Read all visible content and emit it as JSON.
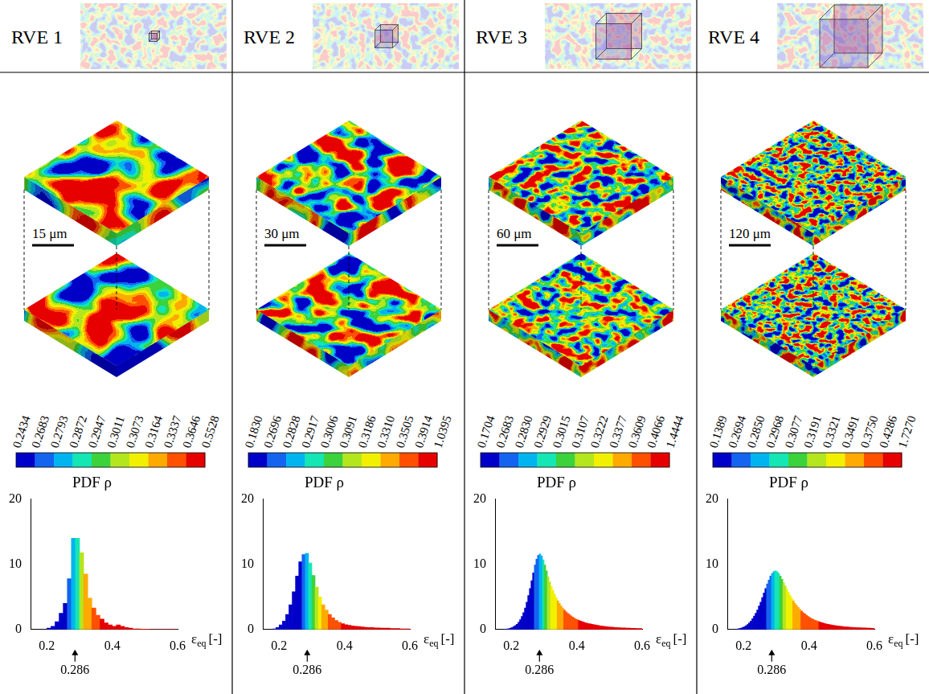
{
  "chart_data": [
    {
      "type": "histogram",
      "panel_title": "RVE 1",
      "scale_bar": "15 μm",
      "colorbar": {
        "ticks": [
          0.2434,
          0.2683,
          0.2793,
          0.2872,
          0.2947,
          0.3011,
          0.3073,
          0.3164,
          0.3337,
          0.3646,
          0.5528
        ],
        "colors": [
          "#0000c8",
          "#1464f0",
          "#00b4f0",
          "#14e6b4",
          "#3cd23c",
          "#b4e61e",
          "#f0f000",
          "#ffaa00",
          "#ff5000",
          "#e60000"
        ]
      },
      "title": "PDF ρ",
      "x_label": {
        "symbol": "ε",
        "subscript": "eq",
        "unit": "[-]"
      },
      "bins": [
        0.2,
        0.2125,
        0.225,
        0.2375,
        0.25,
        0.2625,
        0.275,
        0.2875,
        0.3,
        0.3125,
        0.325,
        0.3375,
        0.35,
        0.3625,
        0.375,
        0.3875,
        0.4,
        0.4125,
        0.425,
        0.4375,
        0.45,
        0.4625,
        0.475,
        0.4875,
        0.5,
        0.5125,
        0.525,
        0.5375,
        0.55,
        0.5625,
        0.575,
        0.5875,
        0.6
      ],
      "values": [
        0.2,
        0.5,
        1.2,
        2.5,
        4.0,
        7.8,
        14.0,
        14.0,
        11.8,
        8.5,
        4.8,
        3.3,
        2.2,
        1.6,
        1.0,
        0.7,
        0.5,
        0.7,
        0.5,
        0.3,
        0.2,
        0.1,
        0.1,
        0.05,
        0.05,
        0,
        0,
        0,
        0,
        0,
        0,
        0
      ],
      "xlim": [
        0.15,
        0.6
      ],
      "xticks": [
        0.2,
        0.4,
        0.6
      ],
      "ylim": [
        0,
        20
      ],
      "yticks": [
        0,
        10,
        20
      ],
      "grid": false,
      "annotations": [
        {
          "x": 0.286,
          "label": "0.286"
        }
      ]
    },
    {
      "type": "histogram",
      "panel_title": "RVE 2",
      "scale_bar": "30 μm",
      "colorbar": {
        "ticks": [
          {
            "value": 0.183,
            "label": "0.1830"
          },
          0.2696,
          0.2828,
          0.2917,
          0.3006,
          0.3091,
          0.3186,
          {
            "value": 0.331,
            "label": "0.3310"
          },
          0.3505,
          0.3914,
          1.0395
        ],
        "colors": [
          "#0000c8",
          "#1464f0",
          "#00b4f0",
          "#14e6b4",
          "#3cd23c",
          "#b4e61e",
          "#f0f000",
          "#ffaa00",
          "#ff5000",
          "#e60000"
        ]
      },
      "title": "PDF ρ",
      "x_label": {
        "symbol": "ε",
        "subscript": "eq",
        "unit": "[-]"
      },
      "bins": [
        0.18,
        0.19,
        0.2,
        0.21,
        0.22,
        0.23,
        0.24,
        0.25,
        0.26,
        0.27,
        0.28,
        0.29,
        0.3,
        0.31,
        0.32,
        0.33,
        0.34,
        0.35,
        0.36,
        0.37,
        0.38,
        0.39,
        0.4,
        0.41,
        0.42,
        0.43,
        0.44,
        0.45,
        0.46,
        0.47,
        0.48,
        0.49,
        0.5,
        0.51,
        0.52,
        0.53,
        0.54,
        0.55,
        0.56,
        0.57,
        0.58,
        0.59,
        0.6
      ],
      "values": [
        0.1,
        0.3,
        0.7,
        1.3,
        2.3,
        3.8,
        5.8,
        8.2,
        10.4,
        11.5,
        11.7,
        10.2,
        8.3,
        6.5,
        5.0,
        3.8,
        3.0,
        2.3,
        1.8,
        1.4,
        1.1,
        0.9,
        0.75,
        0.65,
        0.55,
        0.5,
        0.45,
        0.4,
        0.35,
        0.3,
        0.3,
        0.25,
        0.25,
        0.2,
        0.2,
        0.2,
        0.15,
        0.15,
        0.15,
        0.1,
        0.1,
        0.1
      ],
      "xlim": [
        0.15,
        0.6
      ],
      "xticks": [
        0.2,
        0.4,
        0.6
      ],
      "ylim": [
        0,
        20
      ],
      "yticks": [
        0,
        10,
        20
      ],
      "grid": false,
      "annotations": [
        {
          "x": 0.286,
          "label": "0.286"
        }
      ]
    },
    {
      "type": "histogram",
      "panel_title": "RVE 3",
      "scale_bar": "60 μm",
      "colorbar": {
        "ticks": [
          0.1704,
          0.2683,
          {
            "value": 0.283,
            "label": "0.2830"
          },
          0.2929,
          0.3015,
          0.3107,
          0.3222,
          0.3377,
          0.3609,
          0.4066,
          1.4444
        ],
        "colors": [
          "#0000c8",
          "#1464f0",
          "#00b4f0",
          "#14e6b4",
          "#3cd23c",
          "#b4e61e",
          "#f0f000",
          "#ffaa00",
          "#ff5000",
          "#e60000"
        ]
      },
      "title": "PDF ρ",
      "x_label": {
        "symbol": "ε",
        "subscript": "eq",
        "unit": "[-]"
      },
      "bins": [
        0.18,
        0.185,
        0.19,
        0.195,
        0.2,
        0.205,
        0.21,
        0.215,
        0.22,
        0.225,
        0.23,
        0.235,
        0.24,
        0.245,
        0.25,
        0.255,
        0.26,
        0.265,
        0.27,
        0.275,
        0.28,
        0.285,
        0.29,
        0.295,
        0.3,
        0.305,
        0.31,
        0.315,
        0.32,
        0.325,
        0.33,
        0.335,
        0.34,
        0.345,
        0.35,
        0.355,
        0.36,
        0.365,
        0.37,
        0.375,
        0.38,
        0.385,
        0.39,
        0.395,
        0.4,
        0.405,
        0.41,
        0.415,
        0.42,
        0.425,
        0.43,
        0.435,
        0.44,
        0.445,
        0.45,
        0.455,
        0.46,
        0.465,
        0.47,
        0.475,
        0.48,
        0.485,
        0.49,
        0.495,
        0.5,
        0.505,
        0.51,
        0.515,
        0.52,
        0.525,
        0.53,
        0.535,
        0.54,
        0.545,
        0.55,
        0.555,
        0.56,
        0.565,
        0.57,
        0.575,
        0.58,
        0.585,
        0.59,
        0.595,
        0.6
      ],
      "values": [
        0.05,
        0.08,
        0.12,
        0.2,
        0.3,
        0.45,
        0.6,
        0.8,
        1.1,
        1.5,
        2.0,
        2.6,
        3.3,
        4.2,
        5.2,
        6.3,
        7.5,
        8.7,
        9.9,
        10.8,
        11.4,
        11.6,
        11.3,
        10.7,
        9.9,
        9.0,
        8.1,
        7.3,
        6.6,
        6.0,
        5.4,
        4.9,
        4.4,
        4.0,
        3.6,
        3.3,
        3.0,
        2.7,
        2.5,
        2.3,
        2.1,
        1.9,
        1.75,
        1.6,
        1.5,
        1.4,
        1.3,
        1.2,
        1.1,
        1.0,
        0.95,
        0.9,
        0.85,
        0.8,
        0.75,
        0.7,
        0.65,
        0.6,
        0.56,
        0.52,
        0.49,
        0.46,
        0.43,
        0.4,
        0.38,
        0.36,
        0.34,
        0.32,
        0.3,
        0.28,
        0.27,
        0.25,
        0.24,
        0.23,
        0.22,
        0.21,
        0.2,
        0.19,
        0.18,
        0.17,
        0.16,
        0.15,
        0.15,
        0.14
      ],
      "xlim": [
        0.15,
        0.6
      ],
      "xticks": [
        0.2,
        0.4,
        0.6
      ],
      "ylim": [
        0,
        20
      ],
      "yticks": [
        0,
        10,
        20
      ],
      "grid": false,
      "annotations": [
        {
          "x": 0.286,
          "label": "0.286"
        }
      ]
    },
    {
      "type": "histogram",
      "panel_title": "RVE 4",
      "scale_bar": "120 μm",
      "colorbar": {
        "ticks": [
          0.1389,
          0.2694,
          {
            "value": 0.285,
            "label": "0.2850"
          },
          0.2968,
          0.3077,
          0.3191,
          0.3321,
          0.3491,
          {
            "value": 0.375,
            "label": "0.3750"
          },
          0.4286,
          {
            "value": 1.727,
            "label": "1.7270"
          }
        ],
        "colors": [
          "#0000c8",
          "#1464f0",
          "#00b4f0",
          "#14e6b4",
          "#3cd23c",
          "#b4e61e",
          "#f0f000",
          "#ffaa00",
          "#ff5000",
          "#e60000"
        ]
      },
      "title": "PDF ρ",
      "x_label": {
        "symbol": "ε",
        "subscript": "eq",
        "unit": "[-]"
      },
      "bins": [
        0.18,
        0.185,
        0.19,
        0.195,
        0.2,
        0.205,
        0.21,
        0.215,
        0.22,
        0.225,
        0.23,
        0.235,
        0.24,
        0.245,
        0.25,
        0.255,
        0.26,
        0.265,
        0.27,
        0.275,
        0.28,
        0.285,
        0.29,
        0.295,
        0.3,
        0.305,
        0.31,
        0.315,
        0.32,
        0.325,
        0.33,
        0.335,
        0.34,
        0.345,
        0.35,
        0.355,
        0.36,
        0.365,
        0.37,
        0.375,
        0.38,
        0.385,
        0.39,
        0.395,
        0.4,
        0.405,
        0.41,
        0.415,
        0.42,
        0.425,
        0.43,
        0.435,
        0.44,
        0.445,
        0.45,
        0.455,
        0.46,
        0.465,
        0.47,
        0.475,
        0.48,
        0.485,
        0.49,
        0.495,
        0.5,
        0.505,
        0.51,
        0.515,
        0.52,
        0.525,
        0.53,
        0.535,
        0.54,
        0.545,
        0.55,
        0.555,
        0.56,
        0.565,
        0.57,
        0.575,
        0.58,
        0.585,
        0.59,
        0.595,
        0.6
      ],
      "values": [
        0.1,
        0.15,
        0.22,
        0.3,
        0.42,
        0.58,
        0.78,
        1.0,
        1.3,
        1.65,
        2.05,
        2.5,
        3.0,
        3.6,
        4.2,
        4.9,
        5.6,
        6.3,
        7.0,
        7.6,
        8.2,
        8.6,
        8.9,
        9.0,
        8.9,
        8.6,
        8.2,
        7.7,
        7.2,
        6.7,
        6.2,
        5.7,
        5.2,
        4.8,
        4.4,
        4.0,
        3.7,
        3.4,
        3.1,
        2.85,
        2.6,
        2.4,
        2.2,
        2.0,
        1.85,
        1.7,
        1.58,
        1.46,
        1.35,
        1.25,
        1.16,
        1.08,
        1.0,
        0.93,
        0.87,
        0.81,
        0.76,
        0.71,
        0.66,
        0.62,
        0.58,
        0.55,
        0.52,
        0.49,
        0.46,
        0.43,
        0.41,
        0.39,
        0.37,
        0.35,
        0.33,
        0.31,
        0.3,
        0.28,
        0.27,
        0.26,
        0.25,
        0.24,
        0.23,
        0.22,
        0.21,
        0.2,
        0.19,
        0.18
      ],
      "xlim": [
        0.15,
        0.6
      ],
      "xticks": [
        0.2,
        0.4,
        0.6
      ],
      "ylim": [
        0,
        20
      ],
      "yticks": [
        0,
        10,
        20
      ],
      "grid": false,
      "annotations": [
        {
          "x": 0.286,
          "label": "0.286"
        }
      ]
    }
  ]
}
